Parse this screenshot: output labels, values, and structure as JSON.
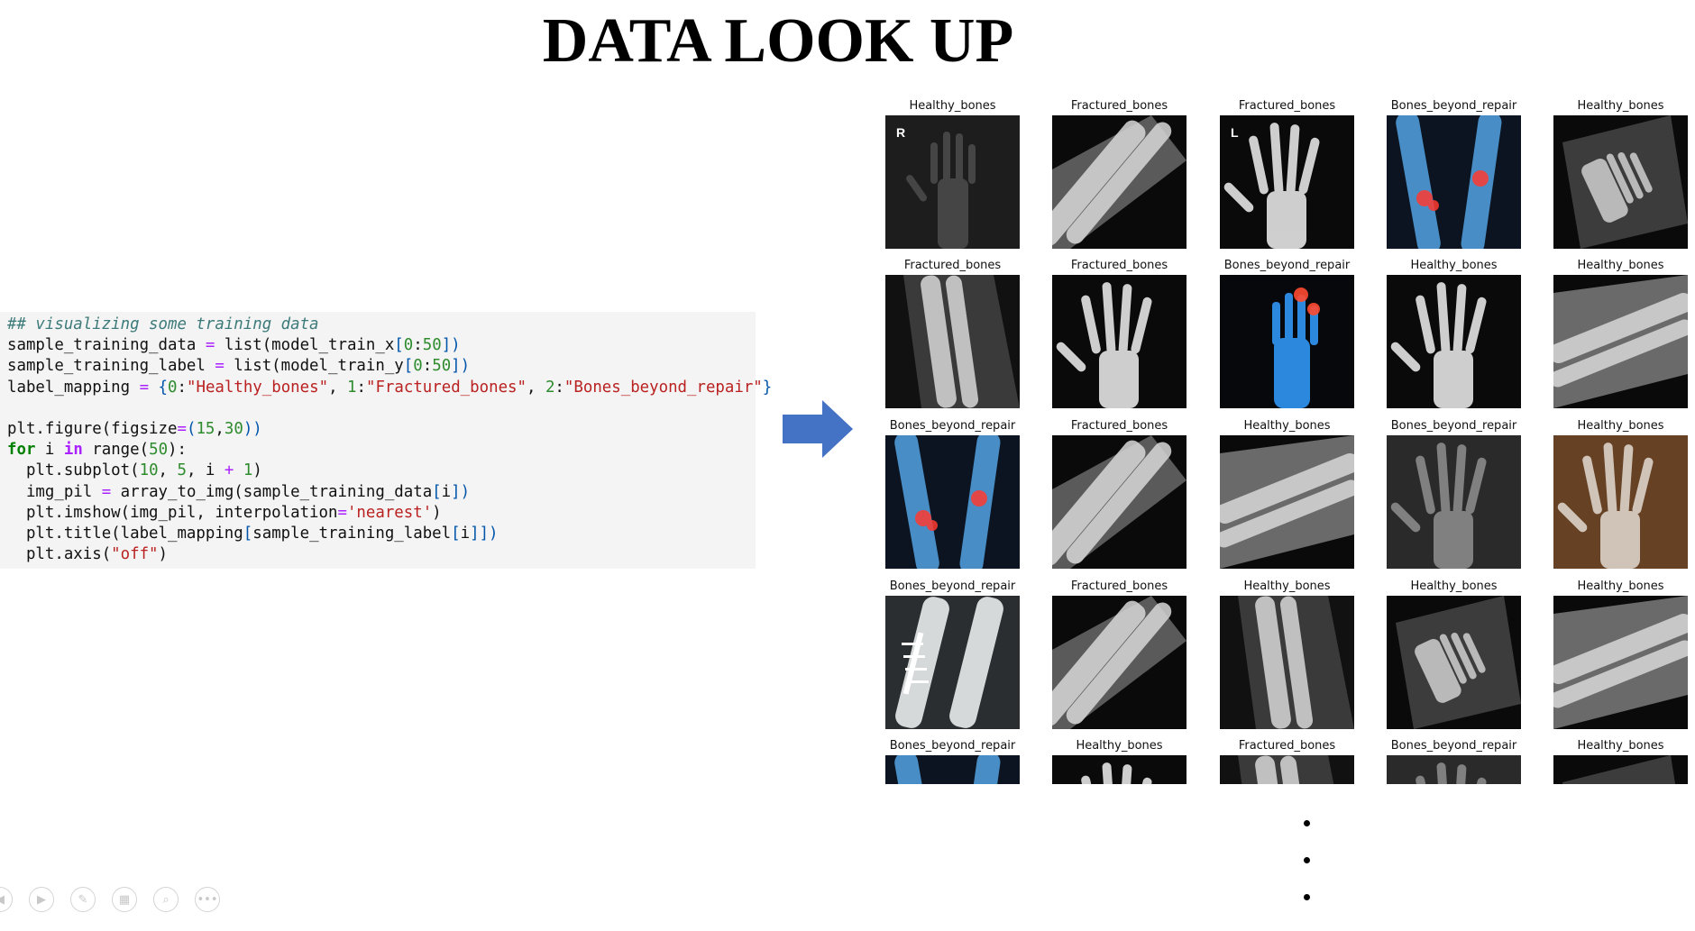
{
  "slide": {
    "title": "DATA LOOK UP"
  },
  "code": {
    "lines": [
      [
        {
          "t": "## visualizing some training data",
          "c": "comment"
        }
      ],
      [
        {
          "t": "sample_training_data ",
          "c": "plain"
        },
        {
          "t": "=",
          "c": "op"
        },
        {
          "t": " list(model_train_x",
          "c": "plain"
        },
        {
          "t": "[",
          "c": "br"
        },
        {
          "t": "0",
          "c": "num"
        },
        {
          "t": ":",
          "c": "plain"
        },
        {
          "t": "50",
          "c": "num"
        },
        {
          "t": "])",
          "c": "br"
        }
      ],
      [
        {
          "t": "sample_training_label ",
          "c": "plain"
        },
        {
          "t": "=",
          "c": "op"
        },
        {
          "t": " list(model_train_y",
          "c": "plain"
        },
        {
          "t": "[",
          "c": "br"
        },
        {
          "t": "0",
          "c": "num"
        },
        {
          "t": ":",
          "c": "plain"
        },
        {
          "t": "50",
          "c": "num"
        },
        {
          "t": "])",
          "c": "br"
        }
      ],
      [
        {
          "t": "label_mapping ",
          "c": "plain"
        },
        {
          "t": "=",
          "c": "op"
        },
        {
          "t": " {",
          "c": "br"
        },
        {
          "t": "0",
          "c": "num"
        },
        {
          "t": ":",
          "c": "plain"
        },
        {
          "t": "\"Healthy_bones\"",
          "c": "str"
        },
        {
          "t": ", ",
          "c": "plain"
        },
        {
          "t": "1",
          "c": "num"
        },
        {
          "t": ":",
          "c": "plain"
        },
        {
          "t": "\"Fractured_bones\"",
          "c": "str"
        },
        {
          "t": ", ",
          "c": "plain"
        },
        {
          "t": "2",
          "c": "num"
        },
        {
          "t": ":",
          "c": "plain"
        },
        {
          "t": "\"Bones_beyond_repair\"",
          "c": "str"
        },
        {
          "t": "}",
          "c": "br"
        }
      ],
      [
        {
          "t": "",
          "c": "plain"
        }
      ],
      [
        {
          "t": "plt.figure(figsize",
          "c": "plain"
        },
        {
          "t": "=",
          "c": "op"
        },
        {
          "t": "(",
          "c": "br"
        },
        {
          "t": "15",
          "c": "num"
        },
        {
          "t": ",",
          "c": "plain"
        },
        {
          "t": "30",
          "c": "num"
        },
        {
          "t": "))",
          "c": "br"
        }
      ],
      [
        {
          "t": "for",
          "c": "keyword"
        },
        {
          "t": " i ",
          "c": "plain"
        },
        {
          "t": "in",
          "c": "kw2"
        },
        {
          "t": " range(",
          "c": "plain"
        },
        {
          "t": "50",
          "c": "num"
        },
        {
          "t": "):",
          "c": "plain"
        }
      ],
      [
        {
          "t": "  plt.subplot(",
          "c": "plain"
        },
        {
          "t": "10",
          "c": "num"
        },
        {
          "t": ", ",
          "c": "plain"
        },
        {
          "t": "5",
          "c": "num"
        },
        {
          "t": ", i ",
          "c": "plain"
        },
        {
          "t": "+",
          "c": "op"
        },
        {
          "t": " ",
          "c": "plain"
        },
        {
          "t": "1",
          "c": "num"
        },
        {
          "t": ")",
          "c": "plain"
        }
      ],
      [
        {
          "t": "  img_pil ",
          "c": "plain"
        },
        {
          "t": "=",
          "c": "op"
        },
        {
          "t": " array_to_img(sample_training_data",
          "c": "plain"
        },
        {
          "t": "[",
          "c": "br"
        },
        {
          "t": "i",
          "c": "plain"
        },
        {
          "t": "])",
          "c": "br"
        }
      ],
      [
        {
          "t": "  plt.imshow(img_pil, interpolation",
          "c": "plain"
        },
        {
          "t": "=",
          "c": "op"
        },
        {
          "t": "'nearest'",
          "c": "str"
        },
        {
          "t": ")",
          "c": "plain"
        }
      ],
      [
        {
          "t": "  plt.title(label_mapping",
          "c": "plain"
        },
        {
          "t": "[",
          "c": "br"
        },
        {
          "t": "sample_training_label",
          "c": "plain"
        },
        {
          "t": "[",
          "c": "br"
        },
        {
          "t": "i",
          "c": "plain"
        },
        {
          "t": "]])",
          "c": "br"
        }
      ],
      [
        {
          "t": "  plt.axis(",
          "c": "plain"
        },
        {
          "t": "\"off\"",
          "c": "str"
        },
        {
          "t": ")",
          "c": "plain"
        }
      ]
    ]
  },
  "arrow": {
    "color": "#4472c4",
    "icon": "right-arrow-icon"
  },
  "grid": {
    "rows": [
      [
        {
          "label": "Healthy_bones",
          "tone": "dark-hand",
          "corner": "R"
        },
        {
          "label": "Fractured_bones",
          "tone": "forearm-angle"
        },
        {
          "label": "Fractured_bones",
          "tone": "bright-hand",
          "corner": "L"
        },
        {
          "label": "Bones_beyond_repair",
          "tone": "blue-forearms"
        },
        {
          "label": "Healthy_bones",
          "tone": "tilted-hand"
        }
      ],
      [
        {
          "label": "Fractured_bones",
          "tone": "forearm-vertical"
        },
        {
          "label": "Fractured_bones",
          "tone": "bright-hand"
        },
        {
          "label": "Bones_beyond_repair",
          "tone": "blue-hand"
        },
        {
          "label": "Healthy_bones",
          "tone": "bright-hand"
        },
        {
          "label": "Healthy_bones",
          "tone": "forearm-diagonal"
        }
      ],
      [
        {
          "label": "Bones_beyond_repair",
          "tone": "blue-forearms"
        },
        {
          "label": "Fractured_bones",
          "tone": "forearm-angle"
        },
        {
          "label": "Healthy_bones",
          "tone": "forearm-diagonal"
        },
        {
          "label": "Bones_beyond_repair",
          "tone": "grey-hand"
        },
        {
          "label": "Healthy_bones",
          "tone": "warm-hand"
        }
      ],
      [
        {
          "label": "Bones_beyond_repair",
          "tone": "plated-forearm"
        },
        {
          "label": "Fractured_bones",
          "tone": "forearm-angle"
        },
        {
          "label": "Healthy_bones",
          "tone": "forearm-vertical"
        },
        {
          "label": "Healthy_bones",
          "tone": "tilted-hand"
        },
        {
          "label": "Healthy_bones",
          "tone": "forearm-diagonal"
        }
      ],
      [
        {
          "label": "Bones_beyond_repair",
          "tone": "blue-forearms"
        },
        {
          "label": "Healthy_bones",
          "tone": "bright-hand"
        },
        {
          "label": "Fractured_bones",
          "tone": "forearm-vertical"
        },
        {
          "label": "Bones_beyond_repair",
          "tone": "grey-hand"
        },
        {
          "label": "Healthy_bones",
          "tone": "tilted-hand"
        }
      ]
    ]
  },
  "continuation": {
    "icon": "vertical-ellipsis-icon"
  },
  "controls": [
    {
      "name": "previous-slide-icon",
      "glyph": "◀"
    },
    {
      "name": "next-slide-icon",
      "glyph": "▶"
    },
    {
      "name": "pen-icon",
      "glyph": "✎"
    },
    {
      "name": "slides-grid-icon",
      "glyph": "▦"
    },
    {
      "name": "zoom-icon",
      "glyph": "⌕"
    },
    {
      "name": "more-options-icon",
      "glyph": "•••"
    }
  ]
}
